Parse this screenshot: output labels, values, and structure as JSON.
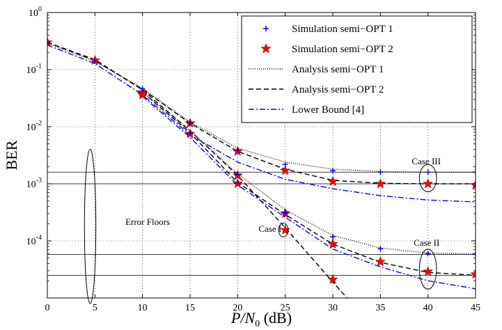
{
  "chart_data": {
    "type": "line",
    "ylabel": "BER",
    "xlabel_parts": {
      "italic": "P/N",
      "sub": "0",
      "unit": " (dB)"
    },
    "xlim": [
      0,
      45
    ],
    "ylim": [
      1e-05,
      1
    ],
    "yscale": "log",
    "x_ticks": [
      0,
      5,
      10,
      15,
      20,
      25,
      30,
      35,
      40,
      45
    ],
    "x_tick_labels": [
      "0",
      "5",
      "10",
      "15",
      "20",
      "25",
      "30",
      "35",
      "40",
      "45"
    ],
    "y_ticks": [
      {
        "value": 1,
        "base": "10",
        "exp": "0"
      },
      {
        "value": 0.1,
        "base": "10",
        "exp": "-1"
      },
      {
        "value": 0.01,
        "base": "10",
        "exp": "-2"
      },
      {
        "value": 0.001,
        "base": "10",
        "exp": "-3"
      },
      {
        "value": 0.0001,
        "base": "10",
        "exp": "-4"
      }
    ],
    "grid": true,
    "legend_position": "top-right",
    "series": [
      {
        "name": "Simulation semi−OPT 1",
        "style": "plus",
        "color": "#0000ff",
        "groups": [
          {
            "x": [
              0,
              5,
              10,
              15,
              20,
              25,
              30,
              35,
              40,
              45
            ],
            "y": [
              0.3,
              0.14,
              0.046,
              0.0115,
              0.0039,
              0.0022,
              0.0017,
              0.0016,
              0.0016,
              0.0016
            ]
          },
          {
            "x": [
              20,
              25,
              30,
              35,
              40,
              45
            ],
            "y": [
              0.00145,
              0.00032,
              0.000118,
              7.3e-05,
              6e-05,
              5.8e-05
            ]
          },
          {
            "x": [
              15,
              20,
              25
            ],
            "y": [
              0.0077,
              0.00102,
              0.00031
            ]
          }
        ]
      },
      {
        "name": "Simulation semi−OPT 2",
        "style": "star",
        "color": "#ff0000",
        "groups": [
          {
            "x": [
              0,
              5,
              10,
              15,
              20,
              25,
              30,
              35,
              40,
              45
            ],
            "y": [
              0.3,
              0.145,
              0.04,
              0.0115,
              0.0037,
              0.0017,
              0.0011,
              0.001,
              0.001,
              0.00095
            ]
          },
          {
            "x": [
              10,
              15,
              20,
              25,
              30,
              35,
              40,
              45
            ],
            "y": [
              0.036,
              0.0075,
              0.00101,
              0.0003,
              8.8e-05,
              4.3e-05,
              2.9e-05,
              2.6e-05
            ]
          },
          {
            "x": [
              20,
              25,
              30
            ],
            "y": [
              0.0014,
              0.000155,
              2.1e-05
            ]
          }
        ]
      },
      {
        "name": "Analysis semi−OPT 1",
        "style": "dotted",
        "color": "#000000",
        "groups": [
          {
            "x": [
              0,
              5,
              10,
              15,
              20,
              25,
              30,
              35,
              40,
              45
            ],
            "y": [
              0.29,
              0.14,
              0.047,
              0.012,
              0.0042,
              0.0024,
              0.0018,
              0.00165,
              0.0016,
              0.0016
            ]
          },
          {
            "x": [
              10,
              15,
              20,
              25,
              30,
              35,
              40,
              45
            ],
            "y": [
              0.04,
              0.0085,
              0.0015,
              0.00035,
              0.000125,
              7.5e-05,
              6.1e-05,
              5.9e-05
            ]
          }
        ]
      },
      {
        "name": "Analysis semi−OPT 2",
        "style": "dashed",
        "color": "#000000",
        "groups": [
          {
            "x": [
              0,
              5,
              10,
              15,
              20,
              25,
              30,
              35,
              40,
              45
            ],
            "y": [
              0.3,
              0.145,
              0.045,
              0.0115,
              0.0037,
              0.0018,
              0.00115,
              0.00102,
              0.001,
              0.001
            ]
          },
          {
            "x": [
              10,
              15,
              20,
              25,
              30,
              35,
              40,
              45
            ],
            "y": [
              0.04,
              0.0078,
              0.00105,
              0.00029,
              8.8e-05,
              4.2e-05,
              2.8e-05,
              2.5e-05
            ]
          },
          {
            "x": [
              0,
              5,
              10,
              15,
              20,
              25,
              30,
              31.5
            ],
            "y": [
              0.3,
              0.15,
              0.044,
              0.0085,
              0.0014,
              0.00017,
              1.9e-05,
              1e-05
            ]
          }
        ]
      },
      {
        "name": "Lower Bound [4]",
        "style": "dashdot",
        "color": "#0000ff",
        "groups": [
          {
            "x": [
              0,
              5,
              10,
              15,
              20,
              25,
              30,
              35,
              40,
              45
            ],
            "y": [
              0.27,
              0.128,
              0.036,
              0.0072,
              0.0024,
              0.0012,
              0.00082,
              0.00062,
              0.00052,
              0.00048
            ]
          },
          {
            "x": [
              10,
              15,
              20,
              25,
              30,
              35,
              40,
              45
            ],
            "y": [
              0.034,
              0.0065,
              0.00095,
              0.00026,
              7.2e-05,
              3.5e-05,
              2e-05,
              1.45e-05
            ]
          }
        ]
      }
    ],
    "floor_lines": [
      0.0016,
      0.001,
      5.8e-05,
      2.5e-05
    ],
    "annotations": [
      {
        "text": "Error Floors",
        "x": 8.2,
        "y": 0.00019
      },
      {
        "text": "Case I",
        "x": 22.2,
        "y": 0.000145
      },
      {
        "text": "Case II",
        "x": 38.5,
        "y": 8.2e-05
      },
      {
        "text": "Case III",
        "x": 38.3,
        "y": 0.0022
      }
    ],
    "ellipses": [
      {
        "x": 4.5,
        "y": 0.00018,
        "rx": 0.6,
        "ry_decades": 1.35
      },
      {
        "x": 24.8,
        "y": 0.000155,
        "rx": 0.5,
        "ry_decades": 0.12
      },
      {
        "x": 40,
        "y": 3.2e-05,
        "rx": 0.9,
        "ry_decades": 0.35
      },
      {
        "x": 40,
        "y": 0.00126,
        "rx": 0.9,
        "ry_decades": 0.24
      }
    ]
  }
}
